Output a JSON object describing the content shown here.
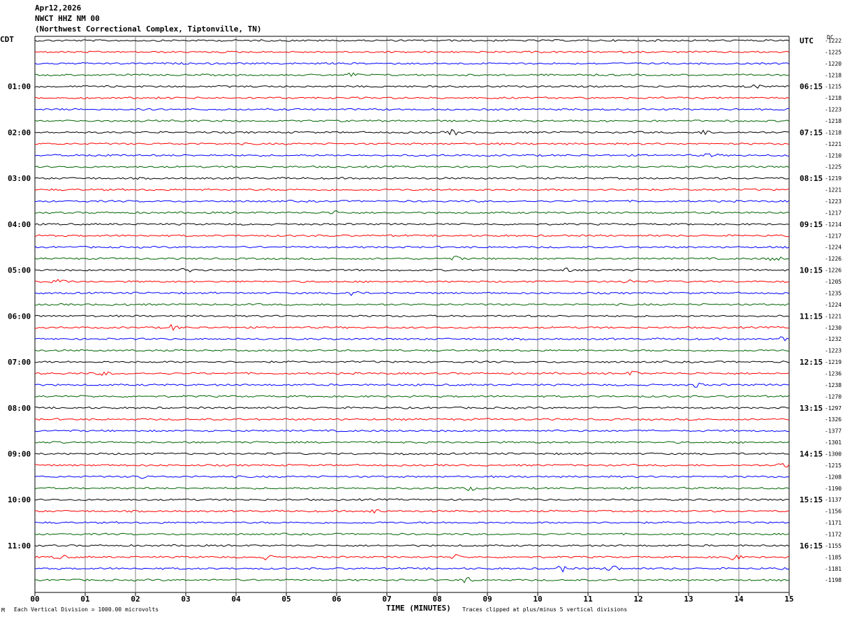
{
  "header": {
    "date": "Apr12,2026",
    "station": "NWCT HHZ NM 00",
    "location": "(Northwest Correctional Complex, Tiptonville, TN)"
  },
  "left_axis_title": "CDT",
  "right_axis_title": "UTC",
  "dc_title": "DC",
  "footer": {
    "scale_note": "Each Vertical Division = 1000.00 microvolts",
    "xlabel": "TIME (MINUTES)",
    "clip_note": "Traces clipped at plus/minus 5 vertical divisions",
    "corner_mark": "M"
  },
  "colors": {
    "trace_cycle": [
      "#000000",
      "#ff0000",
      "#0000ff",
      "#006400"
    ],
    "grid": "#808080"
  },
  "chart_data": {
    "type": "line",
    "title": "NWCT HHZ NM 00",
    "xlabel": "TIME (MINUTES)",
    "xlim": [
      0,
      15
    ],
    "x_ticks": [
      "00",
      "01",
      "02",
      "03",
      "04",
      "05",
      "06",
      "07",
      "08",
      "09",
      "10",
      "11",
      "12",
      "13",
      "14",
      "15"
    ],
    "left_hour_labels": [
      {
        "row": 4,
        "label": "01:00"
      },
      {
        "row": 8,
        "label": "02:00"
      },
      {
        "row": 12,
        "label": "03:00"
      },
      {
        "row": 16,
        "label": "04:00"
      },
      {
        "row": 20,
        "label": "05:00"
      },
      {
        "row": 24,
        "label": "06:00"
      },
      {
        "row": 28,
        "label": "07:00"
      },
      {
        "row": 32,
        "label": "08:00"
      },
      {
        "row": 36,
        "label": "09:00"
      },
      {
        "row": 40,
        "label": "10:00"
      },
      {
        "row": 44,
        "label": "11:00"
      }
    ],
    "right_hour_labels": [
      {
        "row": 0,
        "label": "UTC"
      },
      {
        "row": 4,
        "label": "06:15"
      },
      {
        "row": 8,
        "label": "07:15"
      },
      {
        "row": 12,
        "label": "08:15"
      },
      {
        "row": 16,
        "label": "09:15"
      },
      {
        "row": 20,
        "label": "10:15"
      },
      {
        "row": 24,
        "label": "11:15"
      },
      {
        "row": 28,
        "label": "12:15"
      },
      {
        "row": 32,
        "label": "13:15"
      },
      {
        "row": 36,
        "label": "14:15"
      },
      {
        "row": 40,
        "label": "15:15"
      },
      {
        "row": 44,
        "label": "16:15"
      }
    ],
    "dc_offsets": [
      "-1222",
      "-1225",
      "-1220",
      "-1218",
      "-1215",
      "-1218",
      "-1223",
      "-1218",
      "-1218",
      "-1221",
      "-1210",
      "-1225",
      "-1219",
      "-1221",
      "-1223",
      "-1217",
      "-1214",
      "-1217",
      "-1224",
      "-1226",
      "-1226",
      "-1205",
      "-1235",
      "-1224",
      "-1221",
      "-1230",
      "-1232",
      "-1223",
      "-1219",
      "-1236",
      "-1238",
      "-1270",
      "-1297",
      "-1326",
      "-1377",
      "-1301",
      "-1300",
      "-1215",
      "-1208",
      "-1190",
      "-1137",
      "-1156",
      "-1171",
      "-1172",
      "-1155",
      "-1185",
      "-1181",
      "-1198"
    ],
    "events": [
      {
        "row": 3,
        "minute": 6.3,
        "amp": 3
      },
      {
        "row": 4,
        "minute": 14.3,
        "amp": 3
      },
      {
        "row": 8,
        "minute": 8.35,
        "amp": 5
      },
      {
        "row": 8,
        "minute": 13.35,
        "amp": 3
      },
      {
        "row": 10,
        "minute": 1.35,
        "amp": 3
      },
      {
        "row": 10,
        "minute": 13.45,
        "amp": 3
      },
      {
        "row": 13,
        "minute": 11.9,
        "amp": 3
      },
      {
        "row": 15,
        "minute": 6.0,
        "amp": 3
      },
      {
        "row": 19,
        "minute": 8.4,
        "amp": 3
      },
      {
        "row": 19,
        "minute": 14.7,
        "amp": 4
      },
      {
        "row": 20,
        "minute": 3.05,
        "amp": 3
      },
      {
        "row": 20,
        "minute": 10.55,
        "amp": 3
      },
      {
        "row": 21,
        "minute": 0.5,
        "amp": 4
      },
      {
        "row": 21,
        "minute": 11.8,
        "amp": 3
      },
      {
        "row": 22,
        "minute": 6.3,
        "amp": 5
      },
      {
        "row": 23,
        "minute": 1.7,
        "amp": 3
      },
      {
        "row": 25,
        "minute": 2.75,
        "amp": 4
      },
      {
        "row": 26,
        "minute": 14.9,
        "amp": 4
      },
      {
        "row": 29,
        "minute": 1.4,
        "amp": 3
      },
      {
        "row": 29,
        "minute": 11.9,
        "amp": 3
      },
      {
        "row": 30,
        "minute": 13.15,
        "amp": 3
      },
      {
        "row": 37,
        "minute": 14.9,
        "amp": 3
      },
      {
        "row": 38,
        "minute": 2.1,
        "amp": 3
      },
      {
        "row": 39,
        "minute": 8.65,
        "amp": 3
      },
      {
        "row": 41,
        "minute": 6.8,
        "amp": 4
      },
      {
        "row": 45,
        "minute": 0.5,
        "amp": 3
      },
      {
        "row": 45,
        "minute": 4.6,
        "amp": 3
      },
      {
        "row": 45,
        "minute": 8.35,
        "amp": 3
      },
      {
        "row": 45,
        "minute": 13.9,
        "amp": 5
      },
      {
        "row": 46,
        "minute": 10.5,
        "amp": 4
      },
      {
        "row": 46,
        "minute": 11.5,
        "amp": 5
      },
      {
        "row": 47,
        "minute": 8.6,
        "amp": 4
      }
    ]
  }
}
